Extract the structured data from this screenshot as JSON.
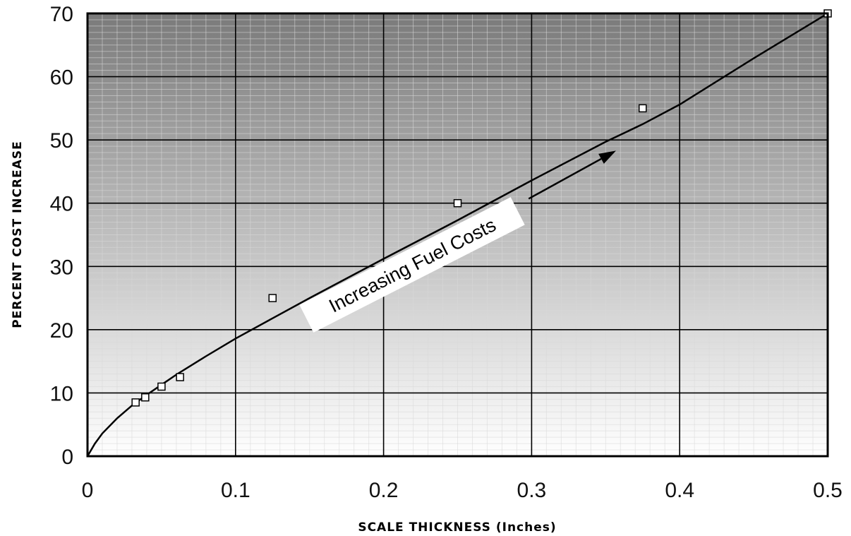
{
  "chart_data": {
    "type": "scatter",
    "xlabel": "SCALE THICKNESS (Inches)",
    "ylabel": "PERCENT COST INCREASE",
    "xlim": [
      0,
      0.5
    ],
    "ylim": [
      0,
      70
    ],
    "xticks": [
      "0",
      "0.1",
      "0.2",
      "0.3",
      "0.4",
      "0.5"
    ],
    "yticks": [
      "0",
      "10",
      "20",
      "30",
      "40",
      "50",
      "60",
      "70"
    ],
    "grid": true,
    "background": "vertical gray gradient, dark at top to light at bottom",
    "points": [
      {
        "x": 0.0325,
        "y": 8.5
      },
      {
        "x": 0.039,
        "y": 9.3
      },
      {
        "x": 0.05,
        "y": 11.0
      },
      {
        "x": 0.0625,
        "y": 12.5
      },
      {
        "x": 0.125,
        "y": 25.0
      },
      {
        "x": 0.25,
        "y": 40.0
      },
      {
        "x": 0.375,
        "y": 55.0
      },
      {
        "x": 0.5,
        "y": 70.0
      }
    ],
    "fit_curve": {
      "x": [
        0,
        0.005,
        0.01,
        0.02,
        0.03,
        0.04,
        0.05,
        0.06,
        0.08,
        0.1,
        0.125,
        0.15,
        0.2,
        0.25,
        0.3,
        0.35,
        0.375,
        0.4,
        0.45,
        0.5
      ],
      "y": [
        0,
        2.0,
        3.6,
        6.0,
        8.0,
        9.7,
        11.3,
        12.9,
        15.8,
        18.6,
        21.8,
        25.0,
        31.2,
        37.3,
        43.6,
        49.7,
        52.5,
        55.6,
        62.9,
        70.0
      ]
    },
    "annotation": {
      "text": "Increasing Fuel Costs",
      "arrow_from": {
        "x": 0.298,
        "y": 40.7
      },
      "arrow_to": {
        "x": 0.357,
        "y": 48.3
      }
    }
  }
}
